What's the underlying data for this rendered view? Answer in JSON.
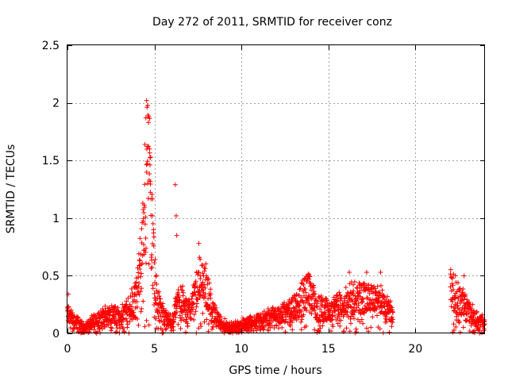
{
  "chart_data": {
    "type": "scatter",
    "title": "Day 272 of 2011, SRMTID for receiver conz",
    "xlabel": "GPS time / hours",
    "ylabel": "SRMTID / TECUs",
    "xlim": [
      0,
      24
    ],
    "ylim": [
      0,
      2.5
    ],
    "xticks": [
      0,
      5,
      10,
      15,
      20
    ],
    "xtick_labels": [
      "0",
      "5",
      "10",
      "15",
      "20"
    ],
    "yticks": [
      0,
      0.5,
      1,
      1.5,
      2,
      2.5
    ],
    "ytick_labels": [
      "0",
      "0.5",
      "1",
      "1.5",
      "2",
      "2.5"
    ],
    "grid": true,
    "marker": "+",
    "color": "#ff0000",
    "series": [
      {
        "name": "SRMTID",
        "approx_envelope": [
          {
            "x": 0.0,
            "y": 0.18
          },
          {
            "x": 0.3,
            "y": 0.12
          },
          {
            "x": 0.7,
            "y": 0.08
          },
          {
            "x": 1.0,
            "y": 0.05
          },
          {
            "x": 1.5,
            "y": 0.1
          },
          {
            "x": 2.0,
            "y": 0.14
          },
          {
            "x": 2.5,
            "y": 0.16
          },
          {
            "x": 3.0,
            "y": 0.15
          },
          {
            "x": 3.5,
            "y": 0.2
          },
          {
            "x": 3.9,
            "y": 0.32
          },
          {
            "x": 4.1,
            "y": 0.48
          },
          {
            "x": 4.3,
            "y": 0.75
          },
          {
            "x": 4.5,
            "y": 1.3
          },
          {
            "x": 4.6,
            "y": 1.85
          },
          {
            "x": 4.7,
            "y": 1.4
          },
          {
            "x": 4.9,
            "y": 0.8
          },
          {
            "x": 5.1,
            "y": 0.35
          },
          {
            "x": 5.4,
            "y": 0.18
          },
          {
            "x": 5.8,
            "y": 0.1
          },
          {
            "x": 6.1,
            "y": 0.12
          },
          {
            "x": 6.3,
            "y": 0.28
          },
          {
            "x": 6.5,
            "y": 0.3
          },
          {
            "x": 6.9,
            "y": 0.2
          },
          {
            "x": 7.3,
            "y": 0.3
          },
          {
            "x": 7.6,
            "y": 0.5
          },
          {
            "x": 7.9,
            "y": 0.45
          },
          {
            "x": 8.3,
            "y": 0.2
          },
          {
            "x": 8.8,
            "y": 0.09
          },
          {
            "x": 9.3,
            "y": 0.05
          },
          {
            "x": 9.8,
            "y": 0.06
          },
          {
            "x": 10.5,
            "y": 0.1
          },
          {
            "x": 11.5,
            "y": 0.13
          },
          {
            "x": 12.5,
            "y": 0.18
          },
          {
            "x": 13.2,
            "y": 0.24
          },
          {
            "x": 13.8,
            "y": 0.38
          },
          {
            "x": 14.3,
            "y": 0.22
          },
          {
            "x": 15.0,
            "y": 0.2
          },
          {
            "x": 15.8,
            "y": 0.25
          },
          {
            "x": 16.5,
            "y": 0.32
          },
          {
            "x": 17.2,
            "y": 0.3
          },
          {
            "x": 17.9,
            "y": 0.28
          },
          {
            "x": 18.4,
            "y": 0.22
          },
          {
            "x": 18.7,
            "y": 0.15
          },
          {
            "x": 22.0,
            "y": 0.38
          },
          {
            "x": 22.5,
            "y": 0.3
          },
          {
            "x": 23.0,
            "y": 0.2
          },
          {
            "x": 23.5,
            "y": 0.12
          },
          {
            "x": 24.0,
            "y": 0.1
          }
        ],
        "gaps": [
          [
            18.8,
            21.9
          ]
        ],
        "outliers": [
          {
            "x": 4.55,
            "y": 2.02
          },
          {
            "x": 4.68,
            "y": 1.88
          },
          {
            "x": 4.72,
            "y": 1.6
          },
          {
            "x": 6.2,
            "y": 1.29
          },
          {
            "x": 6.25,
            "y": 1.02
          },
          {
            "x": 6.28,
            "y": 0.85
          },
          {
            "x": 7.55,
            "y": 0.78
          },
          {
            "x": 16.2,
            "y": 0.53
          },
          {
            "x": 17.2,
            "y": 0.53
          },
          {
            "x": 18.0,
            "y": 0.53
          },
          {
            "x": 22.3,
            "y": 0.5
          },
          {
            "x": 22.8,
            "y": 0.5
          },
          {
            "x": 6.8,
            "y": 0.01
          },
          {
            "x": 4.45,
            "y": 0.06
          },
          {
            "x": 0.05,
            "y": 0.34
          }
        ]
      }
    ]
  }
}
